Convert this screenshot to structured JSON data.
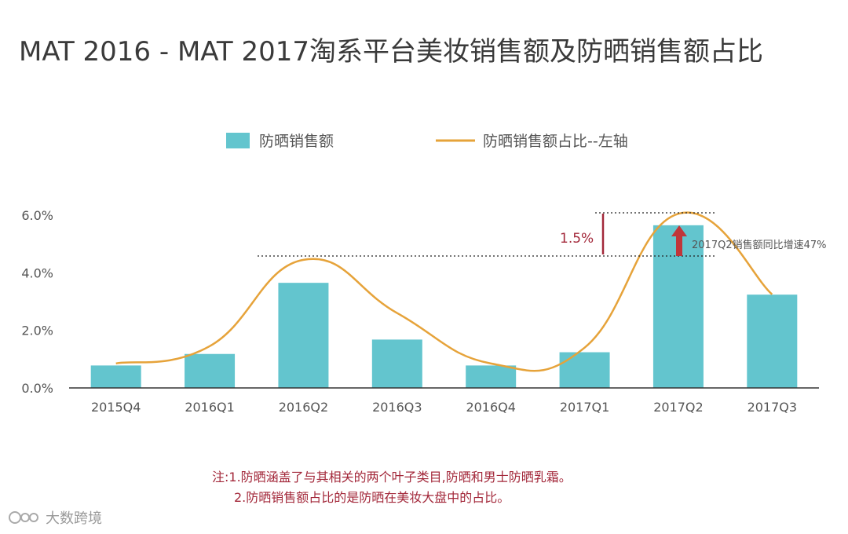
{
  "title": "MAT 2016 - MAT 2017淘系平台美妆销售额及防晒销售额占比",
  "legend": {
    "bar_label": "防晒销售额",
    "line_label": "防晒销售额占比--左轴"
  },
  "annotation": {
    "delta_label": "1.5%",
    "growth_label": "2017Q2销售额同比增速47%"
  },
  "notes": {
    "line1": "注:1.防晒涵盖了与其相关的两个叶子类目,防晒和男士防晒乳霜。",
    "line2": "2.防晒销售额占比的是防晒在美妆大盘中的占比。"
  },
  "brand": {
    "text": "大数跨境",
    "icon": "logo-icon"
  },
  "colors": {
    "bar": "#63c5ce",
    "line": "#e6a33a",
    "annotation": "#a3283a",
    "arrow": "#c0363a",
    "axis": "#333333"
  },
  "chart_data": {
    "type": "bar",
    "categories": [
      "2015Q4",
      "2016Q1",
      "2016Q2",
      "2016Q3",
      "2016Q4",
      "2017Q1",
      "2017Q2",
      "2017Q3"
    ],
    "series": [
      {
        "name": "防晒销售额",
        "type": "bar",
        "values": [
          0.78,
          1.18,
          3.65,
          1.68,
          0.78,
          1.24,
          5.65,
          3.24
        ]
      },
      {
        "name": "防晒销售额占比--左轴",
        "type": "line",
        "values": [
          0.85,
          1.45,
          4.45,
          2.6,
          0.85,
          1.4,
          6.05,
          3.25
        ]
      }
    ],
    "yticks": [
      "0.0%",
      "2.0%",
      "4.0%",
      "6.0%"
    ],
    "ylim": [
      0,
      6
    ],
    "legend_position": "top",
    "grid": false
  }
}
